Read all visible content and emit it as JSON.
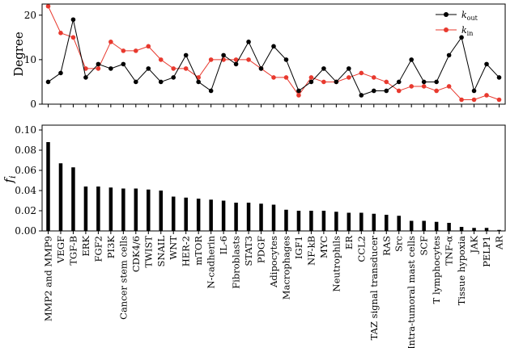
{
  "chart_data": [
    {
      "type": "line",
      "ylabel": "Degree",
      "ylim": [
        0,
        22.5
      ],
      "yticks": [
        0,
        10,
        20
      ],
      "legend_position": "top-right",
      "series": [
        {
          "name_main": "k",
          "name_sub": "out",
          "color": "#000000",
          "values": [
            5,
            7,
            19,
            6,
            9,
            8,
            9,
            5,
            8,
            5,
            6,
            11,
            5,
            3,
            11,
            9,
            14,
            8,
            13,
            10,
            3,
            5,
            8,
            5,
            8,
            2,
            3,
            3,
            5,
            10,
            5,
            5,
            11,
            15,
            3,
            9,
            6
          ]
        },
        {
          "name_main": "k",
          "name_sub": "in",
          "color": "#e8392e",
          "values": [
            22,
            16,
            15,
            8,
            8,
            14,
            12,
            12,
            13,
            10,
            8,
            8,
            6,
            10,
            10,
            10,
            10,
            8,
            6,
            6,
            2,
            6,
            5,
            5,
            6,
            7,
            6,
            5,
            3,
            4,
            4,
            3,
            4,
            1,
            1,
            2,
            1
          ]
        }
      ]
    },
    {
      "type": "bar",
      "ylabel_main": "f",
      "ylabel_sub": "i",
      "ylim": [
        0,
        0.1
      ],
      "yticks": [
        "0.00",
        "0.02",
        "0.04",
        "0.06",
        "0.08",
        "0.10"
      ],
      "color": "#000000",
      "categories": [
        "MMP2 and MMP9",
        "VEGF",
        "TGF-B",
        "ERK",
        "FGF2",
        "PI3K",
        "Cancer stem cells",
        "CDK4/6",
        "TWIST",
        "SNAIL",
        "WNT",
        "HER-2",
        "mTOR",
        "N-cadherin",
        "IL-6",
        "Fibroblasts",
        "STAT3",
        "PDGF",
        "Adipocytes",
        "Macrophages",
        "IGF1",
        "NF-kB",
        "MYC",
        "Neutrophils",
        "ER",
        "CCL2",
        "TAZ signal transducer",
        "RAS",
        "Src",
        "Intra-tumoral mast cells",
        "SCF",
        "T lymphocytes",
        "TNF-α",
        "Tissue hypoxia",
        "JAK",
        "PELP1",
        "AR"
      ],
      "values": [
        0.088,
        0.067,
        0.063,
        0.044,
        0.044,
        0.043,
        0.042,
        0.042,
        0.041,
        0.04,
        0.034,
        0.033,
        0.032,
        0.031,
        0.03,
        0.028,
        0.028,
        0.027,
        0.026,
        0.021,
        0.02,
        0.02,
        0.02,
        0.019,
        0.018,
        0.018,
        0.017,
        0.016,
        0.015,
        0.01,
        0.01,
        0.009,
        0.008,
        0.004,
        0.003,
        0.003,
        0.001
      ]
    }
  ]
}
